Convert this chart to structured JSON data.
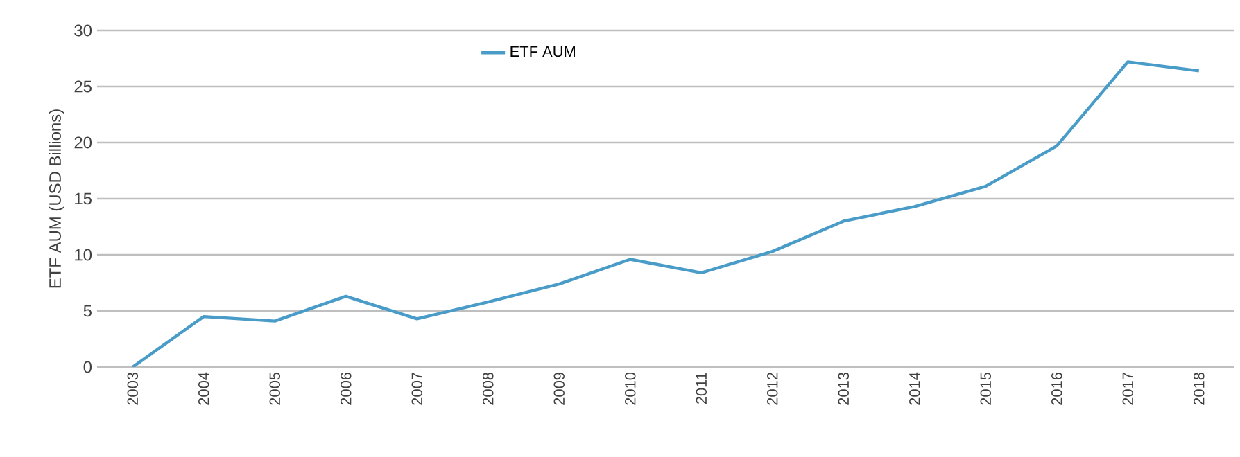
{
  "chart_data": {
    "type": "line",
    "ylabel": "ETF AUM (USD Billions)",
    "categories": [
      "2003",
      "2004",
      "2005",
      "2006",
      "2007",
      "2008",
      "2009",
      "2010",
      "2011",
      "2012",
      "2013",
      "2014",
      "2015",
      "2016",
      "2017",
      "2018"
    ],
    "series": [
      {
        "name": "ETF AUM",
        "color": "#4a9cc8",
        "values": [
          0,
          4.5,
          4.1,
          6.3,
          4.3,
          5.8,
          7.4,
          9.6,
          8.4,
          10.3,
          13.0,
          14.3,
          16.1,
          19.7,
          27.2,
          26.4
        ]
      }
    ],
    "ylim": [
      0,
      30
    ],
    "yticks": [
      0,
      5,
      10,
      15,
      20,
      25,
      30
    ],
    "grid": "y",
    "legend": "top",
    "marker": "none",
    "line_style": "solid"
  }
}
